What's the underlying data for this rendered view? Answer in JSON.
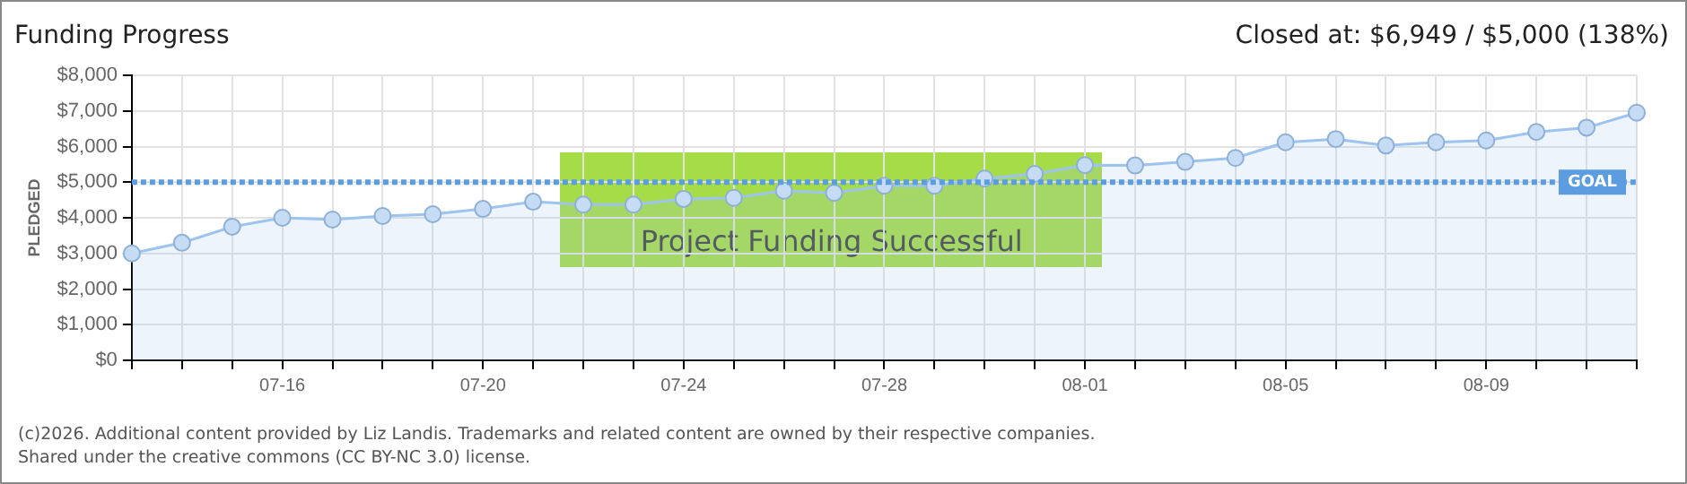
{
  "chart_data": {
    "type": "area",
    "title": "Funding Progress",
    "subtitle": "Closed at:  $6,949 /  $5,000 (138%)",
    "ylabel": "PLEDGED",
    "categories": [
      null,
      null,
      null,
      "07-16",
      null,
      null,
      null,
      "07-20",
      null,
      null,
      null,
      "07-24",
      null,
      null,
      null,
      "07-28",
      null,
      null,
      null,
      "08-01",
      null,
      null,
      null,
      "08-05",
      null,
      null,
      null,
      "08-09",
      null,
      null,
      null
    ],
    "series": [
      {
        "color": "#9cc4ee",
        "values": [
          3000,
          3300,
          3750,
          4000,
          3950,
          4050,
          4100,
          4250,
          4450,
          4370,
          4370,
          4530,
          4560,
          4760,
          4700,
          4900,
          4900,
          5100,
          5230,
          5480,
          5470,
          5570,
          5680,
          6120,
          6210,
          6030,
          6120,
          6170,
          6410,
          6530,
          6950
        ]
      }
    ],
    "ylim": [
      0,
      8000
    ],
    "yticks": [
      {
        "value": 0,
        "label": "$0"
      },
      {
        "value": 1000,
        "label": "$1,000"
      },
      {
        "value": 2000,
        "label": "$2,000"
      },
      {
        "value": 3000,
        "label": "$3,000"
      },
      {
        "value": 4000,
        "label": "$4,000"
      },
      {
        "value": 5000,
        "label": "$5,000"
      },
      {
        "value": 6000,
        "label": "$6,000"
      },
      {
        "value": 7000,
        "label": "$7,000"
      },
      {
        "value": 8000,
        "label": "$8,000"
      }
    ],
    "ref_lines": [
      {
        "axis": "y",
        "value": 5000,
        "label": "GOAL",
        "color": "#5b9de0",
        "line_style": "dotted"
      }
    ],
    "annotations": [
      "Project Funding Successful",
      "(c)2026. Additional content provided by Liz Landis. Trademarks and related content are owned by their respective companies.",
      "Shared under the creative commons (CC BY-NC 3.0) license."
    ],
    "grid": true,
    "legend": false,
    "marker": "circle"
  }
}
